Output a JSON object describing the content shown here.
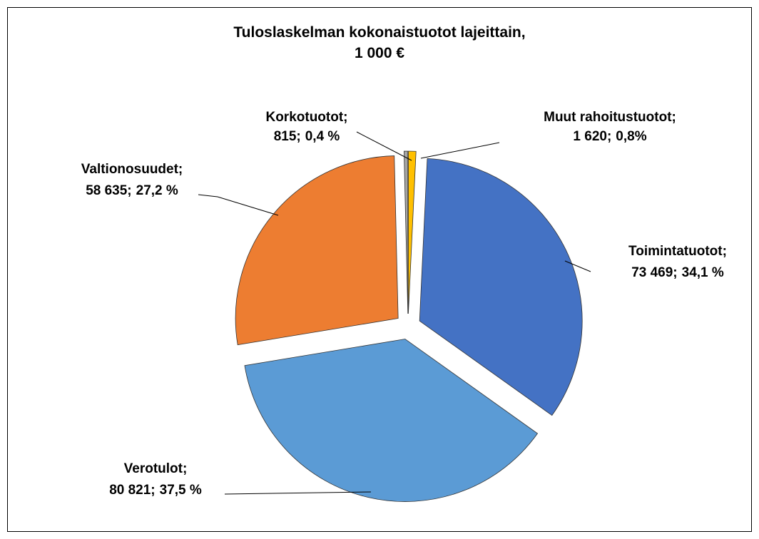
{
  "chart_data": {
    "type": "pie",
    "title": [
      "Tuloslaskelman kokonaistuotot lajeittain,",
      "1 000 €"
    ],
    "categories": [
      "Muut rahoitustuotot;",
      "Toimintatuotot;",
      "Verotulot;",
      "Valtionosuudet;",
      "Korkotuotot;"
    ],
    "values": [
      1620,
      73469,
      80821,
      58635,
      815
    ],
    "value_labels": [
      "1 620;",
      "73 469;",
      "80 821;",
      "58 635;",
      "815;"
    ],
    "percents": [
      0.8,
      34.1,
      37.5,
      27.2,
      0.4
    ],
    "percent_labels": [
      "0,8%",
      "34,1 %",
      "37,5 %",
      "27,2 %",
      "0,4 %"
    ],
    "colors": [
      "#ffc000",
      "#4472c4",
      "#5b9bd5",
      "#ed7d31",
      "#a5a5a5"
    ]
  }
}
